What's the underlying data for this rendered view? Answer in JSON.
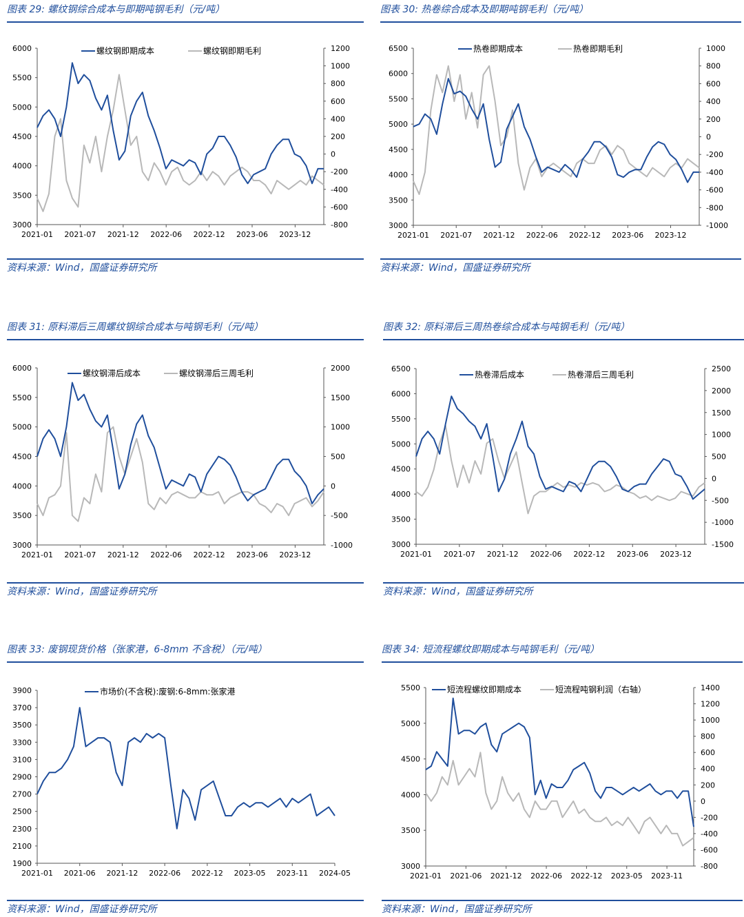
{
  "source": "资料来源：Wind，国盛证券研究所",
  "colors": {
    "blue": "#1f4e9c",
    "gray": "#b8b8b8",
    "axis": "#555555"
  },
  "panels": [
    {
      "id": "p29",
      "title": "图表 29:  螺纹钢综合成本与即期吨钢毛利（元/吨）"
    },
    {
      "id": "p30",
      "title": "图表 30:  热卷综合成本及即期吨钢毛利（元/吨）"
    },
    {
      "id": "p31",
      "title": "图表 31:  原料滞后三周螺纹钢综合成本与吨钢毛利（元/吨）"
    },
    {
      "id": "p32",
      "title": "图表 32:  原料滞后三周热卷综合成本与吨钢毛利（元/吨）"
    },
    {
      "id": "p33",
      "title": "图表 33:  废钢现货价格（张家港，6-8mm 不含税）（元/吨）"
    },
    {
      "id": "p34",
      "title": "图表 34:  短流程螺纹即期成本与吨钢毛利（元/吨）"
    }
  ],
  "chart_data": [
    {
      "type": "line",
      "xticks": [
        "2021-01",
        "2021-07",
        "2021-12",
        "2022-06",
        "2022-12",
        "2023-06",
        "2023-12"
      ],
      "ylim": [
        3000,
        6000
      ],
      "yticks": [
        "6000",
        "5500",
        "5000",
        "4500",
        "4000",
        "3500",
        "3000"
      ],
      "y2lim": [
        -800,
        1200
      ],
      "y2ticks": [
        "1200",
        "1000",
        "800",
        "600",
        "400",
        "200",
        "0",
        "-200",
        "-400",
        "-600",
        "-800"
      ],
      "series": [
        {
          "name": "螺纹钢即期成本",
          "axis": "left",
          "values": [
            4650,
            4850,
            4950,
            4800,
            4500,
            5000,
            5750,
            5400,
            5550,
            5450,
            5150,
            4950,
            5200,
            4600,
            4100,
            4250,
            4850,
            5100,
            5250,
            4850,
            4600,
            4300,
            3950,
            4100,
            4050,
            4000,
            4100,
            4050,
            3850,
            4200,
            4300,
            4500,
            4500,
            4350,
            4150,
            3850,
            3700,
            3850,
            3900,
            3950,
            4200,
            4350,
            4450,
            4450,
            4200,
            4150,
            4000,
            3700,
            3950,
            3950
          ]
        },
        {
          "name": "螺纹钢即期毛利",
          "axis": "right",
          "values": [
            -500,
            -650,
            -450,
            200,
            400,
            -300,
            -500,
            -600,
            100,
            -100,
            200,
            -200,
            200,
            500,
            900,
            500,
            100,
            200,
            -200,
            -300,
            -100,
            -200,
            -350,
            -200,
            -150,
            -300,
            -350,
            -300,
            -200,
            -300,
            -200,
            -250,
            -350,
            -250,
            -200,
            -150,
            -200,
            -300,
            -300,
            -350,
            -450,
            -300,
            -350,
            -400,
            -350,
            -300,
            -350,
            -250,
            -300,
            -350
          ]
        }
      ]
    },
    {
      "type": "line",
      "xticks": [
        "2021-01",
        "2021-07",
        "2021-12",
        "2022-06",
        "2022-12",
        "2023-06",
        "2023-12"
      ],
      "ylim": [
        3000,
        6500
      ],
      "yticks": [
        "6500",
        "6000",
        "5500",
        "5000",
        "4500",
        "4000",
        "3500",
        "3000"
      ],
      "y2lim": [
        -1000,
        1000
      ],
      "y2ticks": [
        "1000",
        "800",
        "600",
        "400",
        "200",
        "0",
        "-200",
        "-400",
        "-600",
        "-800",
        "-1000"
      ],
      "series": [
        {
          "name": "热卷即期成本",
          "axis": "left",
          "values": [
            4950,
            5000,
            5200,
            5100,
            4800,
            5400,
            5900,
            5600,
            5650,
            5550,
            5300,
            5100,
            5400,
            4700,
            4150,
            4250,
            4900,
            5150,
            5400,
            4950,
            4700,
            4350,
            4050,
            4150,
            4100,
            4050,
            4200,
            4100,
            3950,
            4300,
            4450,
            4650,
            4650,
            4550,
            4350,
            4000,
            3950,
            4050,
            4100,
            4100,
            4350,
            4550,
            4650,
            4600,
            4400,
            4300,
            4100,
            3850,
            4050,
            4050
          ]
        },
        {
          "name": "热卷即期毛利",
          "axis": "right",
          "values": [
            -500,
            -650,
            -400,
            300,
            700,
            500,
            800,
            400,
            700,
            200,
            500,
            100,
            700,
            800,
            400,
            -100,
            0,
            300,
            -300,
            -600,
            -350,
            -250,
            -450,
            -350,
            -300,
            -350,
            -400,
            -450,
            -300,
            -250,
            -300,
            -300,
            -150,
            -100,
            -200,
            -100,
            -150,
            -300,
            -350,
            -400,
            -450,
            -350,
            -400,
            -450,
            -350,
            -300,
            -350,
            -250,
            -300,
            -350
          ]
        }
      ]
    },
    {
      "type": "line",
      "xticks": [
        "2021-01",
        "2021-07",
        "2021-12",
        "2022-06",
        "2022-12",
        "2023-06",
        "2023-12"
      ],
      "ylim": [
        3000,
        6000
      ],
      "yticks": [
        "6000",
        "5500",
        "5000",
        "4500",
        "4000",
        "3500",
        "3000"
      ],
      "y2lim": [
        -1000,
        2000
      ],
      "y2ticks": [
        "2000",
        "1500",
        "1000",
        "500",
        "0",
        "-500",
        "-1000"
      ],
      "series": [
        {
          "name": "螺纹钢滞后成本",
          "axis": "left",
          "values": [
            4500,
            4800,
            4950,
            4800,
            4500,
            5000,
            5750,
            5450,
            5550,
            5300,
            5100,
            5000,
            5200,
            4600,
            3950,
            4200,
            4700,
            5050,
            5200,
            4850,
            4650,
            4300,
            3950,
            4100,
            4050,
            4000,
            4200,
            4150,
            3900,
            4200,
            4350,
            4500,
            4450,
            4350,
            4150,
            3900,
            3750,
            3850,
            3900,
            3950,
            4150,
            4350,
            4450,
            4450,
            4250,
            4150,
            4000,
            3700,
            3850,
            3950
          ]
        },
        {
          "name": "螺纹钢滞后三周毛利",
          "axis": "right",
          "values": [
            -300,
            -500,
            -200,
            -150,
            0,
            900,
            -500,
            -600,
            -200,
            -300,
            200,
            -100,
            900,
            1000,
            500,
            200,
            500,
            800,
            400,
            -300,
            -400,
            -200,
            -300,
            -150,
            -100,
            -150,
            -200,
            -200,
            -100,
            -150,
            -150,
            -100,
            -300,
            -200,
            -150,
            -100,
            -100,
            -150,
            -300,
            -350,
            -450,
            -300,
            -350,
            -500,
            -300,
            -250,
            -200,
            -350,
            -250,
            -100
          ]
        }
      ]
    },
    {
      "type": "line",
      "xticks": [
        "2021-01",
        "2021-07",
        "2021-12",
        "2022-06",
        "2022-12",
        "2023-06",
        "2023-12"
      ],
      "ylim": [
        3000,
        6500
      ],
      "yticks": [
        "6500",
        "6000",
        "5500",
        "5000",
        "4500",
        "4000",
        "3500",
        "3000"
      ],
      "y2lim": [
        -1500,
        2500
      ],
      "y2ticks": [
        "2500",
        "2000",
        "1500",
        "1000",
        "500",
        "0",
        "-500",
        "-1000",
        "-1500"
      ],
      "series": [
        {
          "name": "热卷滞后成本",
          "axis": "left",
          "values": [
            4750,
            5100,
            5250,
            5100,
            4800,
            5400,
            5950,
            5700,
            5600,
            5450,
            5350,
            5100,
            5400,
            4750,
            4050,
            4300,
            4800,
            5100,
            5450,
            4950,
            4800,
            4350,
            4100,
            4150,
            4100,
            4050,
            4250,
            4200,
            4050,
            4300,
            4550,
            4650,
            4650,
            4550,
            4350,
            4100,
            4050,
            4150,
            4200,
            4200,
            4400,
            4550,
            4700,
            4650,
            4400,
            4350,
            4150,
            3900,
            4000,
            4100
          ]
        },
        {
          "name": "热卷滞后三周毛利",
          "axis": "right",
          "values": [
            -300,
            -400,
            -200,
            200,
            800,
            1200,
            400,
            -200,
            300,
            -100,
            400,
            100,
            800,
            900,
            400,
            0,
            300,
            600,
            -100,
            -800,
            -400,
            -300,
            -300,
            -200,
            -100,
            -200,
            -150,
            -200,
            -100,
            -150,
            -100,
            -150,
            -300,
            -250,
            -150,
            -200,
            -300,
            -350,
            -450,
            -400,
            -500,
            -400,
            -450,
            -500,
            -450,
            -300,
            -350,
            -400,
            -200,
            -100
          ]
        }
      ]
    },
    {
      "type": "line",
      "xticks": [
        "2021-01",
        "2021-06",
        "2021-12",
        "2022-06",
        "2022-12",
        "2023-05",
        "2023-11",
        "2024-05"
      ],
      "ylim": [
        1900,
        3900
      ],
      "yticks": [
        "3900",
        "3700",
        "3500",
        "3300",
        "3100",
        "2900",
        "2700",
        "2500",
        "2300",
        "2100",
        "1900"
      ],
      "series": [
        {
          "name": "市场价(不含税):废钢:6-8mm:张家港",
          "values": [
            2700,
            2850,
            2950,
            2950,
            3000,
            3100,
            3250,
            3700,
            3250,
            3300,
            3350,
            3350,
            3300,
            2950,
            2800,
            3300,
            3350,
            3300,
            3400,
            3350,
            3400,
            3350,
            2800,
            2300,
            2750,
            2650,
            2400,
            2750,
            2800,
            2850,
            2650,
            2450,
            2450,
            2550,
            2600,
            2550,
            2600,
            2600,
            2550,
            2600,
            2650,
            2550,
            2650,
            2600,
            2650,
            2700,
            2450,
            2500,
            2550,
            2450
          ]
        }
      ]
    },
    {
      "type": "line",
      "xticks": [
        "2021-01",
        "2021-06",
        "2021-12",
        "2022-06",
        "2022-12",
        "2023-05",
        "2023-11"
      ],
      "ylim": [
        3000,
        5500
      ],
      "yticks": [
        "5500",
        "5000",
        "4500",
        "4000",
        "3500",
        "3000"
      ],
      "y2lim": [
        -800,
        1400
      ],
      "y2ticks": [
        "1400",
        "1200",
        "1000",
        "800",
        "600",
        "400",
        "200",
        "0",
        "-200",
        "-400",
        "-600",
        "-800"
      ],
      "series": [
        {
          "name": "短流程螺纹即期成本",
          "axis": "left",
          "values": [
            4350,
            4400,
            4600,
            4500,
            4400,
            5350,
            4850,
            4900,
            4900,
            4850,
            4950,
            5000,
            4700,
            4600,
            4850,
            4900,
            4950,
            5000,
            4950,
            4800,
            4000,
            4200,
            3950,
            4150,
            4100,
            4100,
            4200,
            4350,
            4400,
            4450,
            4300,
            4050,
            3950,
            4100,
            4100,
            4050,
            4000,
            4050,
            4100,
            4050,
            4100,
            4150,
            4050,
            4000,
            4050,
            4050,
            3950,
            4050,
            4050,
            3550
          ]
        },
        {
          "name": "短流程吨钢利润（右轴）",
          "axis": "right",
          "values": [
            100,
            0,
            100,
            300,
            200,
            500,
            200,
            300,
            400,
            300,
            600,
            100,
            -100,
            0,
            300,
            100,
            0,
            100,
            -100,
            -200,
            0,
            -100,
            -100,
            0,
            0,
            -200,
            -100,
            0,
            -150,
            -100,
            -200,
            -250,
            -250,
            -200,
            -300,
            -250,
            -300,
            -200,
            -300,
            -400,
            -250,
            -200,
            -300,
            -400,
            -300,
            -400,
            -400,
            -550,
            -500,
            -450
          ]
        }
      ]
    }
  ]
}
